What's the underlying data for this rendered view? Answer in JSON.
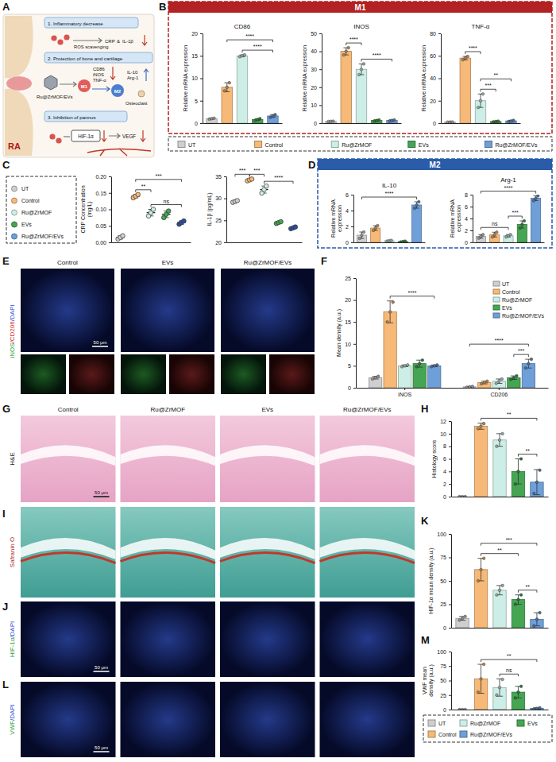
{
  "chart_data": [
    {
      "type": "bar",
      "title": "CD86",
      "y_label": "Relative mRNA expression",
      "categories": [
        "UT",
        "Control",
        "Ru@ZrMOF",
        "EVs",
        "Ru@ZrMOF/EVs"
      ],
      "values": [
        1.0,
        8.0,
        15.0,
        0.8,
        1.6
      ],
      "errors": [
        0.1,
        1.0,
        0.2,
        0.2,
        0.3
      ],
      "points": [
        [
          0.9,
          1.0,
          1.1
        ],
        [
          7.2,
          8.0,
          9.0
        ],
        [
          14.8,
          15.0,
          15.2
        ],
        [
          0.6,
          0.8,
          1.0
        ],
        [
          1.3,
          1.6,
          1.9
        ]
      ],
      "colors": [
        "#cfcfcf",
        "#f7b977",
        "#cdeee6",
        "#45a553",
        "#6f9fd8"
      ],
      "ylim": [
        0,
        20
      ],
      "yticks": [
        0,
        5,
        10,
        15,
        20
      ],
      "tick_labels": "y",
      "annotations": [
        {
          "from": 2,
          "to": 4,
          "label": "****"
        },
        {
          "from": 1,
          "to": 4,
          "label": "****"
        }
      ]
    },
    {
      "type": "bar",
      "title": "INOS",
      "y_label": "Relative mRNA expression",
      "categories": [
        "UT",
        "Control",
        "Ru@ZrMOF",
        "EVs",
        "Ru@ZrMOF/EVs"
      ],
      "values": [
        1.0,
        40.0,
        30.0,
        1.5,
        1.5
      ],
      "errors": [
        0.1,
        2.0,
        3.0,
        0.3,
        0.3
      ],
      "points": [
        [
          0.9,
          1.0,
          1.1
        ],
        [
          38,
          40,
          42
        ],
        [
          27,
          30,
          33
        ],
        [
          1.2,
          1.5,
          1.8
        ],
        [
          1.2,
          1.5,
          1.8
        ]
      ],
      "colors": [
        "#cfcfcf",
        "#f7b977",
        "#cdeee6",
        "#45a553",
        "#6f9fd8"
      ],
      "ylim": [
        0,
        50
      ],
      "yticks": [
        0,
        10,
        20,
        30,
        40,
        50
      ],
      "tick_labels": "y",
      "annotations": [
        {
          "from": 1,
          "to": 2,
          "label": "****"
        },
        {
          "from": 2,
          "to": 4,
          "label": "****"
        }
      ]
    },
    {
      "type": "bar",
      "title": "TNF-α",
      "y_label": "Relative mRNA expression",
      "categories": [
        "UT",
        "Control",
        "Ru@ZrMOF",
        "EVs",
        "Ru@ZrMOF/EVs"
      ],
      "values": [
        1.0,
        58.0,
        20.0,
        1.5,
        2.0
      ],
      "errors": [
        0.1,
        1.5,
        6.0,
        0.3,
        0.5
      ],
      "points": [
        [
          0.9,
          1.0,
          1.1
        ],
        [
          56.5,
          58,
          59.5
        ],
        [
          14,
          20,
          26
        ],
        [
          1.2,
          1.5,
          1.8
        ],
        [
          1.5,
          2.0,
          2.5
        ]
      ],
      "colors": [
        "#cfcfcf",
        "#f7b977",
        "#cdeee6",
        "#45a553",
        "#6f9fd8"
      ],
      "ylim": [
        0,
        80
      ],
      "yticks": [
        0,
        20,
        40,
        60,
        80
      ],
      "tick_labels": "y",
      "annotations": [
        {
          "from": 2,
          "to": 3,
          "label": "***"
        },
        {
          "from": 2,
          "to": 4,
          "label": "**"
        },
        {
          "from": 1,
          "to": 2,
          "label": "****"
        }
      ]
    },
    {
      "type": "dot",
      "y_label": "CRP Concentration (mg/L)",
      "categories": [
        "UT",
        "Control",
        "Ru@ZrMOF",
        "EVs",
        "Ru@ZrMOF/EVs"
      ],
      "values": [
        0.015,
        0.14,
        0.09,
        0.085,
        0.06
      ],
      "errors": [
        0.005,
        0.005,
        0.01,
        0.01,
        0.005
      ],
      "points": [
        [
          0.01,
          0.015,
          0.02
        ],
        [
          0.135,
          0.14,
          0.145
        ],
        [
          0.08,
          0.09,
          0.1
        ],
        [
          0.075,
          0.085,
          0.095
        ],
        [
          0.055,
          0.06,
          0.065
        ]
      ],
      "colors": [
        "#cfcfcf",
        "#f7b977",
        "#cdeee6",
        "#45a553",
        "#2b4f9e"
      ],
      "ylim": [
        0,
        0.2
      ],
      "yticks": [
        {
          "value": 0,
          "label": "0.00"
        },
        0.05,
        {
          "value": 0.1,
          "label": "0.10"
        },
        0.15,
        {
          "value": 0.2,
          "label": "0.20"
        }
      ],
      "tick_labels": "y",
      "annotations": [
        {
          "from": 1,
          "to": 2,
          "label": "**"
        },
        {
          "from": 2,
          "to": 4,
          "label": "ns"
        },
        {
          "from": 1,
          "to": 4,
          "label": "***"
        }
      ]
    },
    {
      "type": "dot",
      "y_label": "IL-1β (pg/mL)",
      "categories": [
        "UT",
        "Control",
        "Ru@ZrMOF",
        "EVs",
        "Ru@ZrMOF/EVs"
      ],
      "values": [
        29.3,
        34.2,
        32.0,
        24.5,
        23.3
      ],
      "errors": [
        0.2,
        0.2,
        0.8,
        0.2,
        0.2
      ],
      "points": [
        [
          29.1,
          29.3,
          29.5
        ],
        [
          34.0,
          34.2,
          34.4
        ],
        [
          31.2,
          32.0,
          32.8
        ],
        [
          24.3,
          24.5,
          24.7
        ],
        [
          23.1,
          23.3,
          23.5
        ]
      ],
      "colors": [
        "#cfcfcf",
        "#f7b977",
        "#cdeee6",
        "#45a553",
        "#2b4f9e"
      ],
      "ylim": [
        20,
        35
      ],
      "yticks": [
        20,
        25,
        30,
        35
      ],
      "tick_labels": "y",
      "annotations": [
        {
          "from": 0,
          "to": 1,
          "label": "***"
        },
        {
          "from": 1,
          "to": 2,
          "label": "***"
        },
        {
          "from": 2,
          "to": 4,
          "label": "****"
        }
      ]
    },
    {
      "type": "bar",
      "title": "IL-10",
      "y_label": "Relative mRNA expression",
      "categories": [
        "UT",
        "Control",
        "Ru@ZrMOF",
        "EVs",
        "Ru@ZrMOF/EVs"
      ],
      "values": [
        0.9,
        1.8,
        0.2,
        0.1,
        4.7
      ],
      "errors": [
        0.4,
        0.3,
        0.05,
        0.05,
        0.4
      ],
      "points": [
        [
          0.5,
          0.9,
          1.3
        ],
        [
          1.5,
          1.8,
          2.1
        ],
        [
          0.15,
          0.2,
          0.25
        ],
        [
          0.05,
          0.1,
          0.15
        ],
        [
          4.3,
          4.7,
          5.1
        ]
      ],
      "colors": [
        "#cfcfcf",
        "#f7b977",
        "#cdeee6",
        "#45a553",
        "#6f9fd8"
      ],
      "ylim": [
        0,
        6
      ],
      "yticks": [
        0,
        2,
        4,
        6
      ],
      "tick_labels": "y",
      "annotations": [
        {
          "from": 0,
          "to": 4,
          "label": "****"
        }
      ]
    },
    {
      "type": "bar",
      "title": "Arg-1",
      "y_label": "Relative mRNA expression",
      "categories": [
        "UT",
        "Control",
        "Ru@ZrMOF",
        "EVs",
        "Ru@ZrMOF/EVs"
      ],
      "values": [
        1.0,
        1.3,
        1.1,
        3.0,
        7.4
      ],
      "errors": [
        0.3,
        0.4,
        0.2,
        0.6,
        0.4
      ],
      "points": [
        [
          0.7,
          1.0,
          1.3
        ],
        [
          0.9,
          1.3,
          1.7
        ],
        [
          0.9,
          1.1,
          1.3
        ],
        [
          2.4,
          3.0,
          3.6
        ],
        [
          7.0,
          7.4,
          7.8
        ]
      ],
      "colors": [
        "#cfcfcf",
        "#f7b977",
        "#cdeee6",
        "#45a553",
        "#6f9fd8"
      ],
      "ylim": [
        0,
        8
      ],
      "yticks": [
        0,
        2,
        4,
        6,
        8
      ],
      "tick_labels": "y",
      "annotations": [
        {
          "from": 0,
          "to": 2,
          "label": "ns"
        },
        {
          "from": 2,
          "to": 3,
          "label": "***"
        },
        {
          "from": 0,
          "to": 4,
          "label": "****"
        }
      ]
    },
    {
      "type": "bar",
      "y_label": "Mean density (a.u.)",
      "categories": [
        "iNOS",
        "CD206"
      ],
      "series": [
        {
          "name": "UT",
          "color": "#cfcfcf",
          "values": [
            2.3,
            0.2
          ],
          "errors": [
            0.3,
            0.1
          ],
          "points": [
            [
              2.0,
              2.3,
              2.6
            ],
            [
              0.1,
              0.2,
              0.3
            ]
          ]
        },
        {
          "name": "Control",
          "color": "#f7b977",
          "values": [
            17.3,
            1.2
          ],
          "errors": [
            2.5,
            0.3
          ],
          "points": [
            [
              15.0,
              17.3,
              19.5
            ],
            [
              0.9,
              1.2,
              1.5
            ]
          ]
        },
        {
          "name": "Ru@ZrMOF",
          "color": "#cdeee6",
          "values": [
            5.0,
            1.5
          ],
          "errors": [
            0.2,
            0.5
          ],
          "points": [
            [
              4.8,
              5.0,
              5.2
            ],
            [
              1.0,
              1.5,
              2.0
            ]
          ]
        },
        {
          "name": "EVs",
          "color": "#45a553",
          "values": [
            5.5,
            2.3
          ],
          "errors": [
            0.8,
            0.4
          ],
          "points": [
            [
              4.8,
              5.5,
              6.3
            ],
            [
              1.9,
              2.3,
              2.7
            ]
          ]
        },
        {
          "name": "Ru@ZrMOF/EVs",
          "color": "#6f9fd8",
          "values": [
            5.0,
            5.5
          ],
          "errors": [
            0.2,
            1.0
          ],
          "points": [
            [
              4.8,
              5.0,
              5.2
            ],
            [
              4.5,
              5.5,
              6.5
            ]
          ]
        }
      ],
      "ylim": [
        0,
        25
      ],
      "yticks": [
        0,
        5,
        10,
        15,
        20,
        25
      ],
      "legend": "top-right",
      "annotations": [
        {
          "category": 0,
          "from": 1,
          "to": 4,
          "label": "****"
        },
        {
          "category": 1,
          "from": 3,
          "to": 4,
          "label": "***"
        },
        {
          "category": 1,
          "from": 0,
          "to": 4,
          "label": "****"
        }
      ]
    },
    {
      "type": "bar",
      "y_label": "Histology score",
      "categories": [
        "UT",
        "Control",
        "Ru@ZrMOF",
        "EVs",
        "Ru@ZrMOF/EVs"
      ],
      "values": [
        0,
        11.2,
        9.0,
        4.0,
        2.3
      ],
      "errors": [
        0,
        0.5,
        1.0,
        2.0,
        2.0
      ],
      "points": [
        [
          0,
          0,
          0
        ],
        [
          10.8,
          11.2,
          11.6
        ],
        [
          8,
          9,
          10
        ],
        [
          2,
          4,
          6
        ],
        [
          0.5,
          2.3,
          4.2
        ]
      ],
      "colors": [
        "#cfcfcf",
        "#f7b977",
        "#cdeee6",
        "#45a553",
        "#6f9fd8"
      ],
      "ylim": [
        0,
        12
      ],
      "yticks": [
        0,
        2,
        4,
        6,
        8,
        10,
        12
      ],
      "tick_labels": "y",
      "annotations": [
        {
          "from": 3,
          "to": 4,
          "label": "**"
        },
        {
          "from": 1,
          "to": 4,
          "label": "**"
        }
      ]
    },
    {
      "type": "bar",
      "y_label": "HIF-1α mean density (a.u.)",
      "categories": [
        "UT",
        "Control",
        "Ru@ZrMOF",
        "EVs",
        "Ru@ZrMOF/EVs"
      ],
      "values": [
        10,
        62,
        40,
        30,
        9
      ],
      "errors": [
        2,
        12,
        5,
        5,
        7
      ],
      "points": [
        [
          8,
          10,
          12
        ],
        [
          50,
          62,
          74
        ],
        [
          35,
          40,
          45
        ],
        [
          25,
          30,
          35
        ],
        [
          2,
          9,
          16
        ]
      ],
      "colors": [
        "#cfcfcf",
        "#f7b977",
        "#cdeee6",
        "#45a553",
        "#6f9fd8"
      ],
      "ylim": [
        0,
        100
      ],
      "yticks": [
        0,
        25,
        50,
        75,
        100
      ],
      "tick_labels": "y",
      "annotations": [
        {
          "from": 3,
          "to": 4,
          "label": "**"
        },
        {
          "from": 1,
          "to": 3,
          "label": "**"
        },
        {
          "from": 1,
          "to": 4,
          "label": "***"
        }
      ]
    },
    {
      "type": "bar",
      "y_label": "VWF mean density (a.u.)",
      "categories": [
        "UT",
        "Control",
        "Ru@ZrMOF",
        "EVs",
        "Ru@ZrMOF/EVs"
      ],
      "values": [
        0,
        53,
        38,
        30,
        2
      ],
      "errors": [
        0,
        25,
        15,
        10,
        1
      ],
      "points": [
        [
          0,
          0,
          0
        ],
        [
          30,
          53,
          78
        ],
        [
          25,
          38,
          52
        ],
        [
          20,
          30,
          40
        ],
        [
          1,
          2,
          3
        ]
      ],
      "colors": [
        "#cfcfcf",
        "#f7b977",
        "#cdeee6",
        "#45a553",
        "#6f9fd8"
      ],
      "ylim": [
        0,
        100
      ],
      "yticks": [
        0,
        25,
        50,
        75,
        100
      ],
      "tick_labels": "y",
      "annotations": [
        {
          "from": 2,
          "to": 3,
          "label": "ns"
        },
        {
          "from": 1,
          "to": 4,
          "label": "**"
        }
      ]
    }
  ],
  "figure": {
    "letters": [
      "A",
      "B",
      "C",
      "D",
      "E",
      "F",
      "G",
      "H",
      "I",
      "J",
      "K",
      "L",
      "M"
    ],
    "headings": [
      "M1",
      "M2"
    ],
    "legend": {
      "names": [
        "UT",
        "Control",
        "Ru@ZrMOF",
        "EVs",
        "Ru@ZrMOF/EVs"
      ],
      "colors": [
        "#cfcfcf",
        "#f7b977",
        "#cdeee6",
        "#45a553",
        "#6f9fd8"
      ]
    },
    "diagram": {
      "label": "RA",
      "steps": [
        "1. Inflammatory decrease",
        "2. Protection of bone and cartilage",
        "3. Inhibition of pannus"
      ],
      "material": "Ru@ZrMOF/EVs",
      "ros": "ROS scavenging",
      "markers": [
        "CRP",
        "&",
        "IL-1β"
      ],
      "m1": "M1",
      "m1_markers": [
        "CD86",
        "iNOS",
        "TNF-α"
      ],
      "m2": "M2",
      "m2_markers": [
        "IL-10",
        "Arg-1"
      ],
      "osteoclast": "Osteoclast",
      "hif": "HIF-1α",
      "vegf": "VEGF"
    },
    "image_rows": [
      {
        "type": "fluorescence",
        "stain": [
          {
            "text": "iNOS",
            "color": "#2a9d2a"
          },
          {
            "text": "/CD206",
            "color": "#d62828"
          },
          {
            "text": "/DAPI",
            "color": "#2f4fd0"
          }
        ],
        "columns": [
          "Control",
          "EVs",
          "Ru@ZrMOF/EVs"
        ],
        "scale": "50 μm"
      },
      {
        "type": "he",
        "stain": [
          {
            "text": "H&E",
            "color": "#222222"
          }
        ],
        "columns": [
          "Control",
          "Ru@ZrMOF",
          "EVs",
          "Ru@ZrMOF/EVs"
        ],
        "scale": "50 μm"
      },
      {
        "type": "safranin",
        "stain": [
          {
            "text": "Safranin O",
            "color": "#b03030"
          }
        ]
      },
      {
        "type": "fluorescence",
        "stain": [
          {
            "text": "HIF-1α",
            "color": "#2a9d2a"
          },
          {
            "text": "/DAPI",
            "color": "#2f4fd0"
          }
        ],
        "scale": "50 μm"
      },
      {
        "type": "fluorescence",
        "stain": [
          {
            "text": "VWF",
            "color": "#2a9d2a"
          },
          {
            "text": "/DAPI",
            "color": "#2f4fd0"
          }
        ],
        "scale": "50 μm"
      }
    ]
  }
}
